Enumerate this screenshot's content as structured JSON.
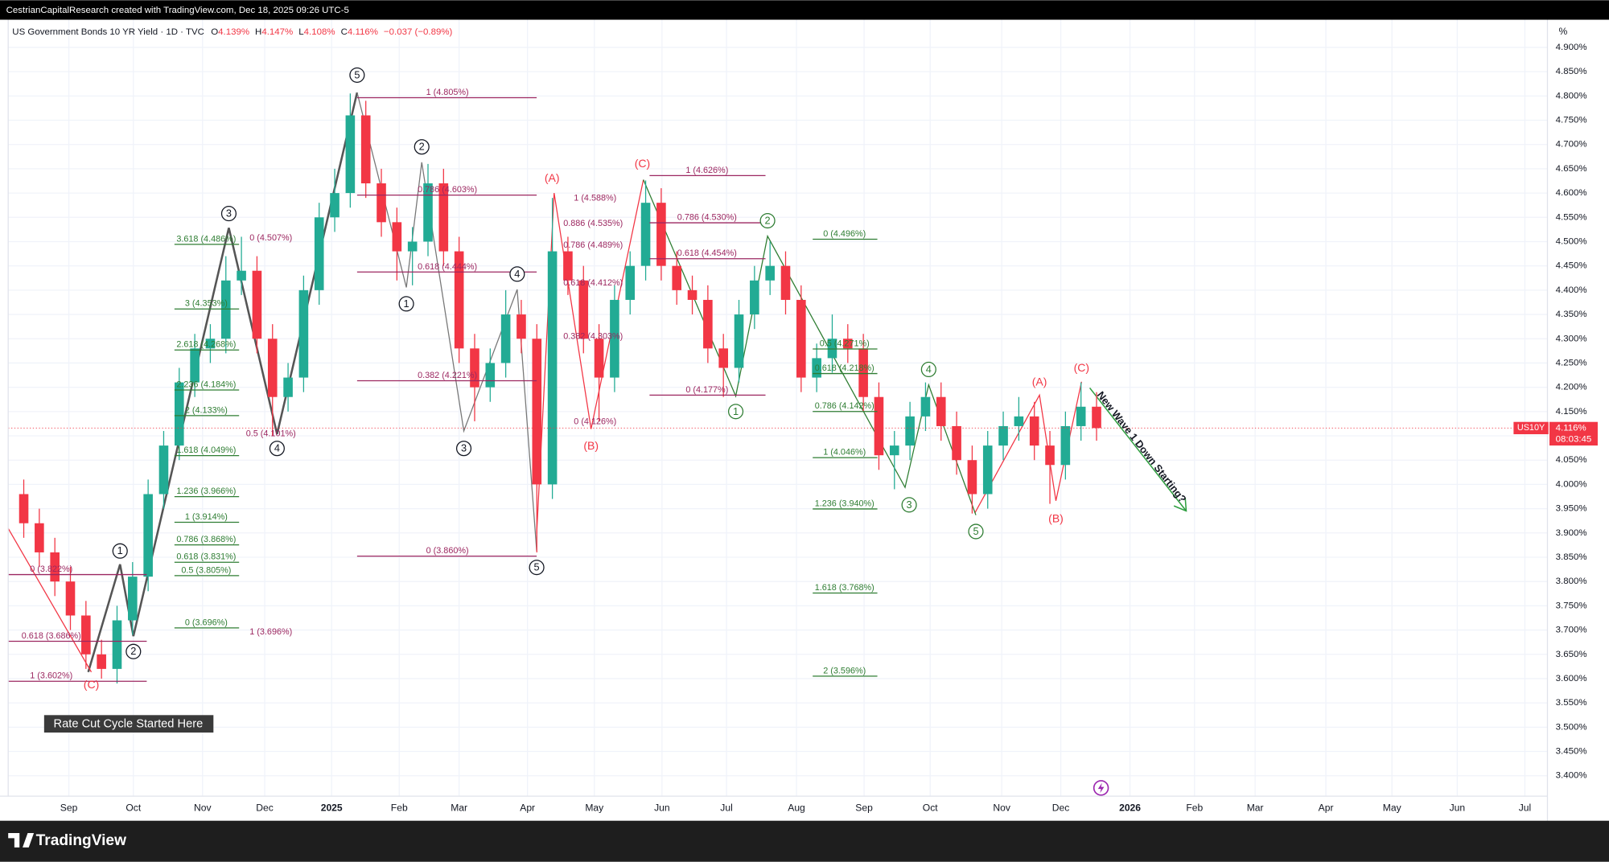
{
  "chart_data": {
    "type": "candlestick",
    "header": {
      "credit": "CestrianCapitalResearch created with TradingView.com, Dec 18, 2025 09:26 UTC-5",
      "symbol": "US Government Bonds 10 YR Yield · 1D · TVC",
      "ohlc": [
        {
          "key": "O",
          "value": "4.139%"
        },
        {
          "key": "H",
          "value": "4.147%"
        },
        {
          "key": "L",
          "value": "4.108%"
        },
        {
          "key": "C",
          "value": "4.116%"
        }
      ],
      "change": "−0.037 (−0.89%)"
    },
    "axis_unit": "%",
    "price_tag": {
      "symbol": "US10Y",
      "price": "4.116%",
      "countdown": "08:03:45"
    },
    "up_color": "#22ab94",
    "down_color": "#f23645",
    "grid": true,
    "categories": [
      null,
      null,
      null,
      null,
      null,
      null,
      null,
      null,
      null,
      null,
      null,
      null,
      null,
      null,
      null,
      null,
      null,
      null,
      null,
      null,
      null,
      null,
      null,
      null,
      null,
      null,
      null,
      null,
      null,
      null,
      null,
      null,
      null,
      null,
      null,
      null,
      null,
      null,
      null,
      null,
      null,
      null,
      null,
      null,
      null,
      null,
      null,
      null,
      null,
      null,
      null,
      null,
      null,
      null,
      null,
      null,
      null,
      null,
      null,
      null,
      null,
      null,
      null,
      null,
      null,
      null,
      null,
      null,
      null,
      null
    ],
    "open": [
      3.98,
      3.92,
      3.86,
      3.8,
      3.73,
      3.65,
      3.62,
      3.72,
      3.81,
      3.98,
      4.08,
      4.21,
      4.28,
      4.3,
      4.42,
      4.44,
      4.3,
      4.18,
      4.22,
      4.4,
      4.55,
      4.6,
      4.76,
      4.62,
      4.54,
      4.48,
      4.5,
      4.62,
      4.48,
      4.28,
      4.2,
      4.25,
      4.35,
      4.3,
      4.0,
      4.48,
      4.42,
      4.3,
      4.22,
      4.38,
      4.45,
      4.58,
      4.45,
      4.4,
      4.38,
      4.28,
      4.24,
      4.35,
      4.42,
      4.45,
      4.38,
      4.22,
      4.26,
      4.3,
      4.28,
      4.18,
      4.06,
      4.08,
      4.14,
      4.18,
      4.12,
      4.05,
      3.98,
      4.08,
      4.12,
      4.14,
      4.08,
      4.04,
      4.12,
      4.16
    ],
    "high": [
      4.01,
      3.95,
      3.89,
      3.83,
      3.76,
      3.68,
      3.75,
      3.84,
      4.01,
      4.11,
      4.24,
      4.31,
      4.33,
      4.47,
      4.51,
      4.47,
      4.33,
      4.25,
      4.43,
      4.58,
      4.65,
      4.805,
      4.79,
      4.65,
      4.57,
      4.53,
      4.66,
      4.65,
      4.51,
      4.31,
      4.28,
      4.4,
      4.38,
      4.33,
      4.59,
      4.51,
      4.45,
      4.33,
      4.41,
      4.48,
      4.626,
      4.61,
      4.48,
      4.43,
      4.41,
      4.31,
      4.38,
      4.45,
      4.5,
      4.48,
      4.41,
      4.29,
      4.35,
      4.33,
      4.31,
      4.21,
      4.11,
      4.17,
      4.21,
      4.21,
      4.15,
      4.08,
      4.11,
      4.15,
      4.18,
      4.17,
      4.11,
      4.15,
      4.21,
      4.19
    ],
    "low": [
      3.89,
      3.83,
      3.77,
      3.7,
      3.62,
      3.6,
      3.59,
      3.69,
      3.78,
      3.95,
      4.05,
      4.18,
      4.25,
      4.27,
      4.39,
      4.27,
      4.1,
      4.15,
      4.19,
      4.37,
      4.52,
      4.57,
      4.59,
      4.51,
      4.42,
      4.41,
      4.47,
      4.45,
      4.25,
      4.13,
      4.17,
      4.22,
      4.27,
      3.86,
      3.97,
      4.39,
      4.27,
      4.13,
      4.19,
      4.35,
      4.42,
      4.42,
      4.37,
      4.35,
      4.25,
      4.18,
      4.21,
      4.32,
      4.39,
      4.35,
      4.19,
      4.19,
      4.23,
      4.25,
      4.15,
      4.03,
      3.99,
      4.05,
      4.11,
      4.09,
      4.02,
      3.94,
      3.95,
      4.05,
      4.09,
      4.05,
      3.96,
      4.01,
      4.09,
      4.09
    ],
    "close": [
      3.92,
      3.86,
      3.8,
      3.73,
      3.65,
      3.62,
      3.72,
      3.81,
      3.98,
      4.08,
      4.21,
      4.28,
      4.3,
      4.42,
      4.44,
      4.3,
      4.18,
      4.22,
      4.4,
      4.55,
      4.6,
      4.76,
      4.62,
      4.54,
      4.48,
      4.5,
      4.62,
      4.48,
      4.28,
      4.2,
      4.25,
      4.35,
      4.3,
      4.0,
      4.48,
      4.42,
      4.3,
      4.22,
      4.38,
      4.45,
      4.58,
      4.45,
      4.4,
      4.38,
      4.28,
      4.24,
      4.35,
      4.42,
      4.45,
      4.38,
      4.22,
      4.26,
      4.3,
      4.28,
      4.18,
      4.06,
      4.08,
      4.14,
      4.18,
      4.12,
      4.05,
      3.98,
      4.08,
      4.12,
      4.14,
      4.08,
      4.04,
      4.12,
      4.16,
      4.116
    ],
    "xlim": [
      -1,
      98
    ],
    "xticks": [
      {
        "value": 2.9,
        "label": "Sep"
      },
      {
        "value": 7.05,
        "label": "Oct"
      },
      {
        "value": 11.5,
        "label": "Nov"
      },
      {
        "value": 15.5,
        "label": "Dec"
      },
      2025,
      {
        "value": 24.15,
        "label": "Feb"
      },
      {
        "value": 28.0,
        "label": "Mar"
      },
      {
        "value": 32.4,
        "label": "Apr"
      },
      {
        "value": 36.7,
        "label": "May"
      },
      {
        "value": 41.05,
        "label": "Jun"
      },
      {
        "value": 45.2,
        "label": "Jul"
      },
      {
        "value": 49.7,
        "label": "Aug"
      },
      {
        "value": 54.05,
        "label": "Sep"
      },
      {
        "value": 58.3,
        "label": "Oct"
      },
      {
        "value": 62.9,
        "label": "Nov"
      },
      {
        "value": 66.7,
        "label": "Dec"
      },
      2026,
      {
        "value": 75.3,
        "label": "Feb"
      },
      {
        "value": 79.2,
        "label": "Mar"
      },
      {
        "value": 83.75,
        "label": "Apr"
      },
      {
        "value": 88.0,
        "label": "May"
      },
      {
        "value": 92.2,
        "label": "Jun"
      },
      {
        "value": 96.55,
        "label": "Jul"
      }
    ],
    "year_tick_positions": [
      19.8,
      71.15
    ],
    "ylim": [
      3.358,
      4.957
    ],
    "yticks": [
      {
        "value": 3.4,
        "label": "3.400%"
      },
      {
        "value": 3.45,
        "label": "3.450%"
      },
      {
        "value": 3.5,
        "label": "3.500%"
      },
      {
        "value": 3.55,
        "label": "3.550%"
      },
      {
        "value": 3.6,
        "label": "3.600%"
      },
      {
        "value": 3.65,
        "label": "3.650%"
      },
      {
        "value": 3.7,
        "label": "3.700%"
      },
      {
        "value": 3.75,
        "label": "3.750%"
      },
      {
        "value": 3.8,
        "label": "3.800%"
      },
      {
        "value": 3.85,
        "label": "3.850%"
      },
      {
        "value": 3.9,
        "label": "3.900%"
      },
      {
        "value": 3.95,
        "label": "3.950%"
      },
      {
        "value": 4.0,
        "label": "4.000%"
      },
      {
        "value": 4.05,
        "label": "4.050%"
      },
      {
        "value": 4.1,
        "label": "4.100%"
      },
      {
        "value": 4.15,
        "label": "4.150%"
      },
      {
        "value": 4.2,
        "label": "4.200%"
      },
      {
        "value": 4.25,
        "label": "4.250%"
      },
      {
        "value": 4.3,
        "label": "4.300%"
      },
      {
        "value": 4.35,
        "label": "4.350%"
      },
      {
        "value": 4.4,
        "label": "4.400%"
      },
      {
        "value": 4.45,
        "label": "4.450%"
      },
      {
        "value": 4.5,
        "label": "4.500%"
      },
      {
        "value": 4.55,
        "label": "4.550%"
      },
      {
        "value": 4.6,
        "label": "4.600%"
      },
      {
        "value": 4.65,
        "label": "4.650%"
      },
      {
        "value": 4.7,
        "label": "4.700%"
      },
      {
        "value": 4.75,
        "label": "4.750%"
      },
      {
        "value": 4.8,
        "label": "4.800%"
      },
      {
        "value": 4.85,
        "label": "4.850%"
      },
      {
        "value": 4.9,
        "label": "4.900%"
      }
    ],
    "fib_labels": [
      "0 (3.822%)",
      "0.618 (3.686%)",
      "1 (3.602%)",
      "3.618 (4.486%)",
      "3 (4.353%)",
      "2.618 (4.268%)",
      "2.236 (4.184%)",
      "2 (4.133%)",
      "1.618 (4.049%)",
      "1.236 (3.966%)",
      "1 (3.914%)",
      "0.786 (3.868%)",
      "0.618 (3.831%)",
      "0.5 (3.805%)",
      "0 (3.696%)",
      "0 (4.507%)",
      "0.5 (4.101%)",
      "1 (3.696%)",
      "1 (4.805%)",
      "0.786 (4.603%)",
      "0.618 (4.444%)",
      "0.382 (4.221%)",
      "0 (3.860%)",
      "1 (4.588%)",
      "0.886 (4.535%)",
      "0.786 (4.489%)",
      "0.618 (4.412%)",
      "0.382 (4.303%)",
      "0 (4.126%)",
      "1 (4.626%)",
      "0.786 (4.530%)",
      "0.618 (4.454%)",
      "0 (4.177%)",
      "0 (4.496%)",
      "0.5 (4.271%)",
      "0.618 (4.218%)",
      "0.786 (4.142%)",
      "1 (4.046%)",
      "1.236 (3.940%)",
      "1.618 (3.768%)",
      "2 (3.596%)"
    ],
    "wave_numbers": [
      "5",
      "3",
      "2",
      "1",
      "4",
      "3",
      "5",
      "4",
      "1",
      "2",
      "2",
      "1",
      "4",
      "3",
      "5"
    ],
    "wave_letters": [
      "(C)",
      "(A)",
      "(B)",
      "(C)",
      "(A)",
      "(C)",
      "(B)"
    ],
    "annotations": {
      "note": "Rate Cut Cycle Started Here",
      "forecast": "New Wave 1 Down Starting?"
    },
    "footer": {
      "brand": "TradingView"
    }
  }
}
